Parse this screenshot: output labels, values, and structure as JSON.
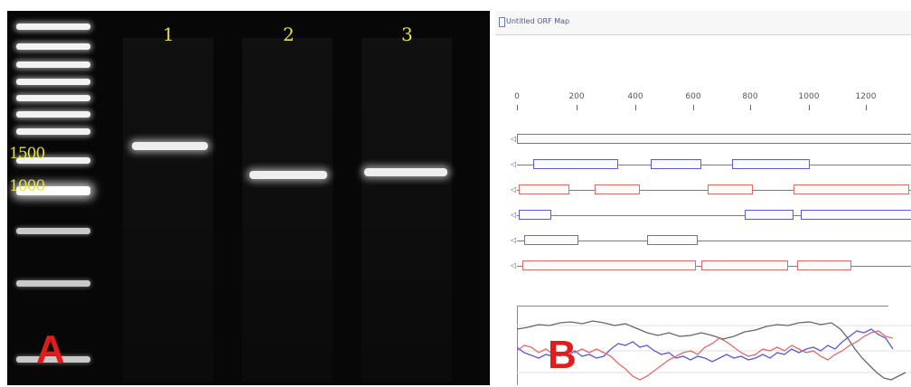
{
  "panel_a": {
    "letter": "A",
    "lane_labels": [
      "1",
      "2",
      "3"
    ],
    "size_labels": [
      "1500",
      "1000"
    ]
  },
  "panel_b": {
    "letter": "B",
    "window_title": "Untitled ORF Map",
    "ruler_labels": [
      "0",
      "200",
      "400",
      "600",
      "800",
      "1000",
      "1200"
    ],
    "colors": {
      "blue": "#5b5bd8",
      "red": "#df6b6b",
      "gray": "#777777"
    }
  }
}
